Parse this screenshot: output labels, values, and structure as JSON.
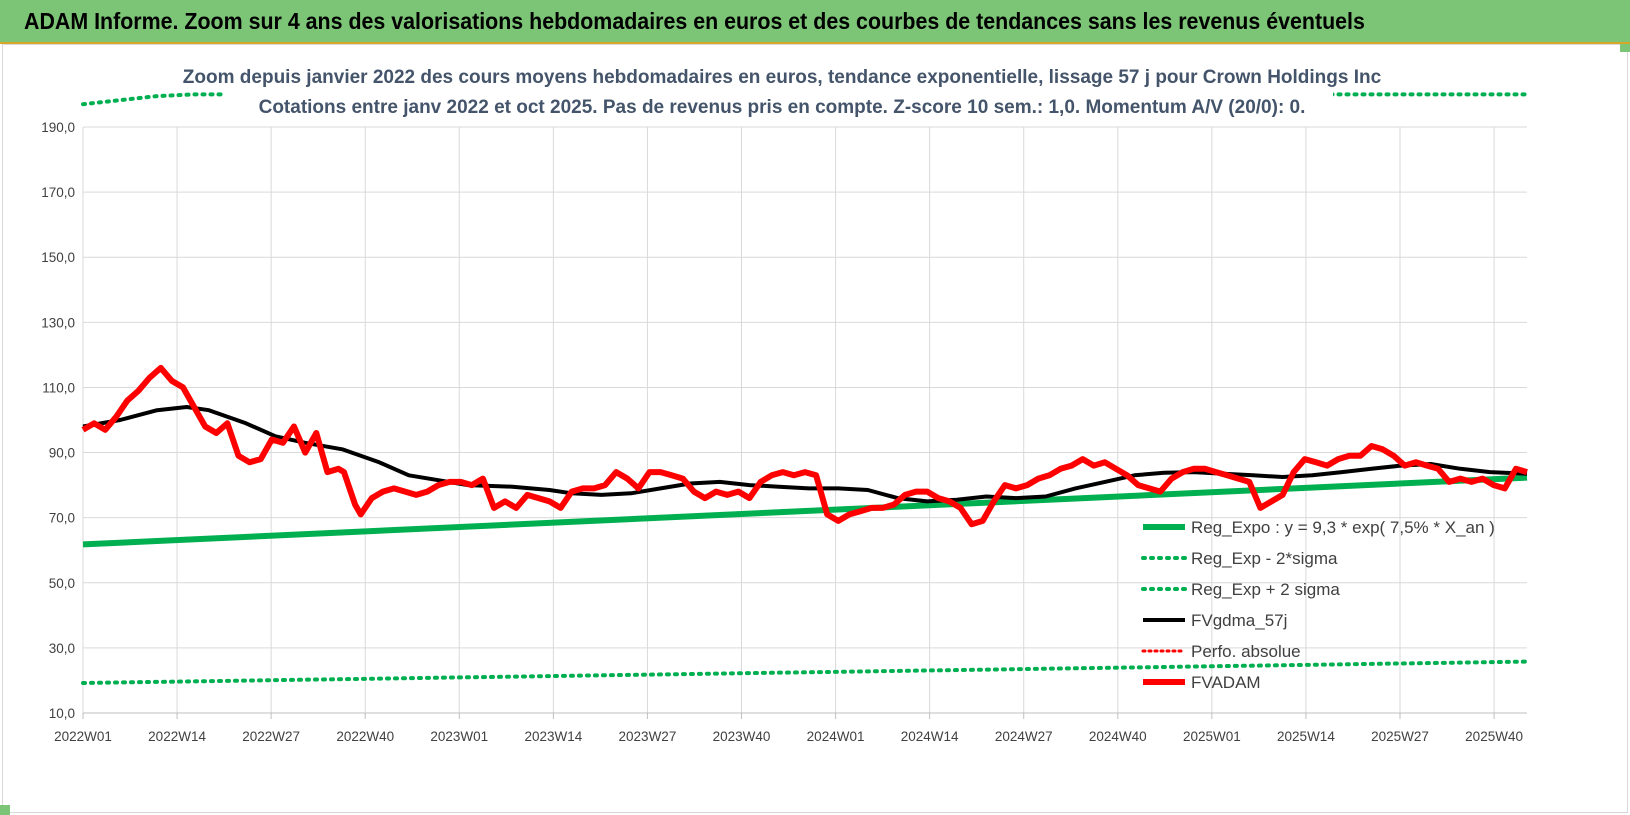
{
  "header": {
    "title": "ADAM Informe. Zoom sur 4 ans des valorisations hebdomadaires en euros et des courbes de tendances sans les revenus éventuels"
  },
  "chart_data": {
    "type": "line",
    "title_line1": "Zoom depuis janvier 2022 des cours moyens hebdomadaires en euros, tendance exponentielle, lissage 57 j pour Crown Holdings Inc",
    "title_line2": "Cotations entre janv 2022 et oct 2025. Pas de revenus pris en compte. Z-score 10 sem.: 1,0. Momentum A/V (20/0): 0.",
    "xlabel": "",
    "ylabel": "",
    "ylim": [
      10,
      190
    ],
    "y_ticks": [
      "10,0",
      "30,0",
      "50,0",
      "70,0",
      "90,0",
      "110,0",
      "130,0",
      "150,0",
      "170,0",
      "190,0"
    ],
    "x_tick_labels": [
      "2022W01",
      "2022W14",
      "2022W27",
      "2022W40",
      "2023W01",
      "2023W14",
      "2023W27",
      "2023W40",
      "2024W01",
      "2024W14",
      "2024W27",
      "2024W40",
      "2025W01",
      "2025W14",
      "2025W27",
      "2025W40"
    ],
    "grid": true,
    "legend_position": "bottom-right",
    "colors": {
      "reg_expo": "#00b050",
      "sigma": "#00b050",
      "fvgdma": "#000000",
      "perfo": "#ff0000",
      "fvadam": "#ff0000",
      "grid": "#d9d9d9"
    },
    "series": [
      {
        "name": "Reg_Expo : y = 9,3 * exp( 7,5% *  X_an )",
        "style": "line",
        "points": [
          [
            0,
            61.8
          ],
          [
            195,
            82.3
          ]
        ]
      },
      {
        "name": "Reg_Exp - 2*sigma",
        "style": "dotted",
        "points": [
          [
            0,
            19.2
          ],
          [
            195,
            25.8
          ]
        ]
      },
      {
        "name": "Reg_Exp + 2 sigma",
        "style": "dotted",
        "points": [
          [
            0,
            197
          ],
          [
            10,
            199.5
          ],
          [
            15,
            200
          ],
          [
            195,
            200
          ]
        ]
      },
      {
        "name": "FVgdma_57j",
        "style": "line",
        "points": [
          [
            0,
            98
          ],
          [
            5,
            100
          ],
          [
            10,
            103
          ],
          [
            14,
            104
          ],
          [
            17,
            103
          ],
          [
            22,
            99
          ],
          [
            26,
            95
          ],
          [
            30,
            93
          ],
          [
            35,
            91
          ],
          [
            40,
            87
          ],
          [
            44,
            83
          ],
          [
            48,
            81.5
          ],
          [
            52,
            80
          ],
          [
            58,
            79.5
          ],
          [
            63,
            78.5
          ],
          [
            66,
            77.5
          ],
          [
            70,
            77
          ],
          [
            74,
            77.5
          ],
          [
            78,
            79
          ],
          [
            82,
            80.5
          ],
          [
            86,
            81
          ],
          [
            90,
            80
          ],
          [
            94,
            79.5
          ],
          [
            98,
            79
          ],
          [
            102,
            79
          ],
          [
            106,
            78.5
          ],
          [
            110,
            76
          ],
          [
            114,
            75
          ],
          [
            118,
            75.5
          ],
          [
            122,
            76.5
          ],
          [
            126,
            76
          ],
          [
            130,
            76.5
          ],
          [
            134,
            79
          ],
          [
            138,
            81
          ],
          [
            142,
            83
          ],
          [
            146,
            83.8
          ],
          [
            150,
            84
          ],
          [
            154,
            83.5
          ],
          [
            158,
            83
          ],
          [
            162,
            82.5
          ],
          [
            166,
            83
          ],
          [
            170,
            84
          ],
          [
            174,
            85
          ],
          [
            178,
            86
          ],
          [
            182,
            86.5
          ],
          [
            186,
            85
          ],
          [
            190,
            84
          ],
          [
            195,
            83.5
          ]
        ]
      },
      {
        "name": "Perfo. absolue",
        "style": "dotted",
        "points": []
      },
      {
        "name": "FVADAM",
        "style": "line",
        "points": [
          [
            0,
            97
          ],
          [
            2,
            99
          ],
          [
            4,
            97
          ],
          [
            6,
            101
          ],
          [
            8,
            106
          ],
          [
            10,
            109
          ],
          [
            12,
            113
          ],
          [
            14,
            116
          ],
          [
            16,
            112
          ],
          [
            18,
            110
          ],
          [
            20,
            104
          ],
          [
            22,
            98
          ],
          [
            24,
            96
          ],
          [
            26,
            99
          ],
          [
            28,
            89
          ],
          [
            30,
            87
          ],
          [
            32,
            88
          ],
          [
            34,
            94
          ],
          [
            36,
            93
          ],
          [
            38,
            98
          ],
          [
            40,
            90
          ],
          [
            42,
            96
          ],
          [
            44,
            84
          ],
          [
            46,
            85
          ],
          [
            47,
            84
          ],
          [
            49,
            74
          ],
          [
            50,
            71
          ],
          [
            52,
            76
          ],
          [
            54,
            78
          ],
          [
            56,
            79
          ],
          [
            58,
            78
          ],
          [
            60,
            77
          ],
          [
            62,
            78
          ],
          [
            64,
            80
          ],
          [
            66,
            81
          ],
          [
            68,
            81
          ],
          [
            70,
            80
          ],
          [
            72,
            82
          ],
          [
            74,
            73
          ],
          [
            76,
            75
          ],
          [
            78,
            73
          ],
          [
            80,
            77
          ],
          [
            82,
            76
          ],
          [
            84,
            75
          ],
          [
            86,
            73
          ],
          [
            88,
            78
          ],
          [
            90,
            79
          ],
          [
            92,
            79
          ],
          [
            94,
            80
          ],
          [
            96,
            84
          ],
          [
            98,
            82
          ],
          [
            100,
            79
          ],
          [
            102,
            84
          ],
          [
            104,
            84
          ],
          [
            106,
            83
          ],
          [
            108,
            82
          ],
          [
            110,
            78
          ],
          [
            112,
            76
          ],
          [
            114,
            78
          ],
          [
            116,
            77
          ],
          [
            118,
            78
          ],
          [
            120,
            76
          ],
          [
            122,
            81
          ],
          [
            124,
            83
          ],
          [
            126,
            84
          ],
          [
            128,
            83
          ],
          [
            130,
            84
          ],
          [
            132,
            83
          ],
          [
            134,
            71
          ],
          [
            136,
            69
          ],
          [
            138,
            71
          ],
          [
            140,
            72
          ],
          [
            142,
            73
          ],
          [
            144,
            73
          ],
          [
            146,
            74
          ],
          [
            148,
            77
          ],
          [
            150,
            78
          ],
          [
            152,
            78
          ],
          [
            154,
            76
          ],
          [
            156,
            75
          ],
          [
            158,
            73
          ],
          [
            160,
            68
          ],
          [
            162,
            69
          ],
          [
            164,
            75
          ],
          [
            166,
            80
          ],
          [
            168,
            79
          ],
          [
            170,
            80
          ],
          [
            172,
            82
          ],
          [
            174,
            83
          ],
          [
            176,
            85
          ],
          [
            178,
            86
          ],
          [
            180,
            88
          ],
          [
            182,
            86
          ],
          [
            184,
            87
          ],
          [
            186,
            85
          ],
          [
            188,
            83
          ],
          [
            190,
            80
          ],
          [
            192,
            79
          ],
          [
            194,
            78
          ],
          [
            196,
            82
          ],
          [
            198,
            84
          ],
          [
            200,
            85
          ],
          [
            202,
            85
          ],
          [
            204,
            84
          ],
          [
            206,
            83
          ],
          [
            208,
            82
          ],
          [
            210,
            81
          ],
          [
            212,
            73
          ],
          [
            214,
            75
          ],
          [
            216,
            77
          ],
          [
            218,
            84
          ],
          [
            220,
            88
          ],
          [
            222,
            87
          ],
          [
            224,
            86
          ],
          [
            226,
            88
          ],
          [
            228,
            89
          ],
          [
            230,
            89
          ],
          [
            232,
            92
          ],
          [
            234,
            91
          ],
          [
            236,
            89
          ],
          [
            238,
            86
          ],
          [
            240,
            87
          ],
          [
            242,
            86
          ],
          [
            244,
            85
          ],
          [
            246,
            81
          ],
          [
            248,
            82
          ],
          [
            250,
            81
          ],
          [
            252,
            82
          ],
          [
            254,
            80
          ],
          [
            256,
            79
          ],
          [
            258,
            85
          ],
          [
            260,
            84
          ]
        ]
      }
    ]
  }
}
